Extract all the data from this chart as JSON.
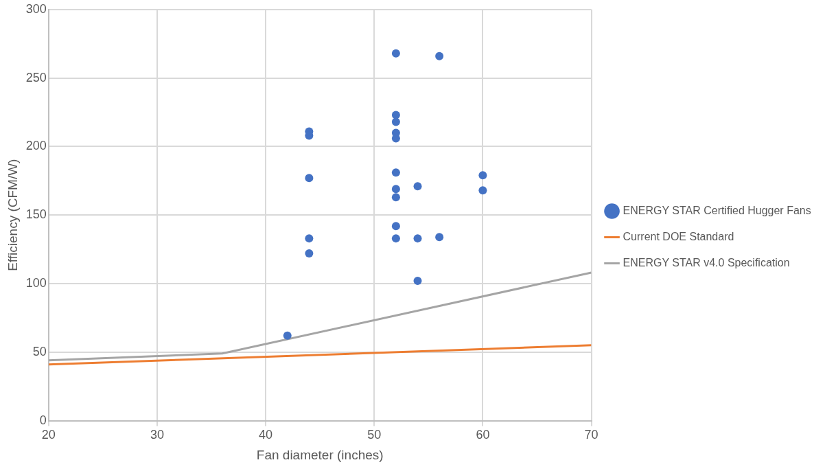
{
  "chart_data": {
    "type": "scatter",
    "xlabel": "Fan diameter (inches)",
    "ylabel": "Efficiency (CFM/W)",
    "xlim": [
      20,
      70
    ],
    "xticks": [
      20,
      30,
      40,
      50,
      60,
      70
    ],
    "ylim": [
      0,
      300
    ],
    "yticks": [
      0,
      50,
      100,
      150,
      200,
      250,
      300
    ],
    "grid": true,
    "legend": "right",
    "series": [
      {
        "name": "ENERGY STAR Certified Hugger Fans",
        "marker": "circle",
        "color": "#4472c4",
        "x": [
          42,
          44,
          44,
          44,
          44,
          44,
          52,
          52,
          52,
          52,
          52,
          52,
          52,
          52,
          52,
          52,
          54,
          54,
          54,
          56,
          56,
          60,
          60
        ],
        "values": [
          62,
          211,
          208,
          177,
          133,
          122,
          268,
          223,
          218,
          210,
          206,
          181,
          169,
          163,
          142,
          133,
          171,
          133,
          102,
          266,
          134,
          179,
          168
        ]
      },
      {
        "name": "Current DOE Standard",
        "type": "line",
        "color": "#ed7d31",
        "x": [
          20,
          70
        ],
        "values": [
          41,
          55
        ]
      },
      {
        "name": "ENERGY STAR v4.0 Specification",
        "type": "line",
        "color": "#a5a5a5",
        "x": [
          20,
          36,
          70
        ],
        "values": [
          44,
          49,
          108
        ]
      }
    ]
  }
}
